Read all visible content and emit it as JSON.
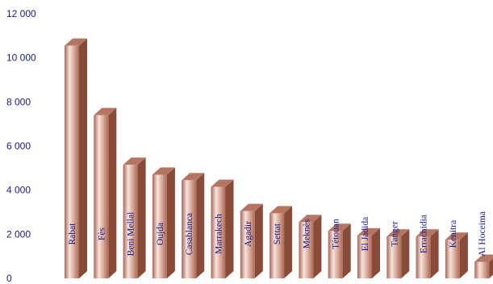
{
  "chart_data": {
    "type": "bar",
    "title": "",
    "xlabel": "",
    "ylabel": "",
    "ylim": [
      0,
      12000
    ],
    "yticks": [
      0,
      2000,
      4000,
      6000,
      8000,
      10000,
      12000
    ],
    "ytick_labels": [
      "0",
      "2 000",
      "4 000",
      "6 000",
      "8 000",
      "10 000",
      "12 000"
    ],
    "categories": [
      "Rabat",
      "Fès",
      "Beni Mellal",
      "Oujda",
      "Casablanca",
      "Marrakech",
      "Agadir",
      "Settat",
      "Meknès",
      "Tétouan",
      "El Jadida",
      "Tanger",
      "Errachidia",
      "Kenitra",
      "Al Hoceima"
    ],
    "values": [
      10550,
      7400,
      5150,
      4700,
      4450,
      4150,
      3050,
      2950,
      2550,
      2150,
      1950,
      1900,
      1900,
      1750,
      750
    ],
    "grid": false,
    "legend": "none",
    "bar_style": "3d-cylinder",
    "colors": {
      "bar_front": "#c98f7e",
      "bar_highlight": "#f6e4dc",
      "bar_side": "#8a4a38",
      "bar_top": "#b57563",
      "labels": "#1a1a8c"
    }
  }
}
